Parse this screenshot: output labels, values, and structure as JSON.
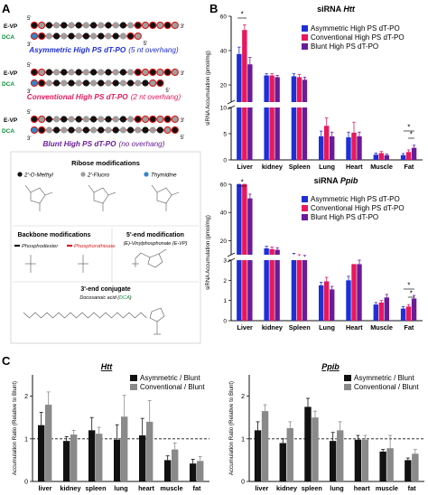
{
  "panels": {
    "a": "A",
    "b": "B",
    "c": "C"
  },
  "panel_a": {
    "molecules": [
      {
        "evp": "E-VP",
        "dca": "DCA",
        "end5": "5'",
        "end3": "3'",
        "label": "Asymmetric High PS dT-PO",
        "note": "(5 nt overhang)",
        "color": "#1f2fd6",
        "overhang": 5
      },
      {
        "evp": "E-VP",
        "dca": "DCA",
        "end5": "5'",
        "end3": "3'",
        "label": "Conventional High PS dT-PO",
        "note": "(2 nt overhang)",
        "color": "#e8185c",
        "overhang": 2
      },
      {
        "evp": "E-VP",
        "dca": "DCA",
        "end5": "5'",
        "end3": "3'",
        "label": "Blunt High PS dT-PO",
        "note": "(no overhang)",
        "color": "#6a1b9a",
        "overhang": 0
      }
    ],
    "ribose": {
      "title": "Ribose modifications",
      "items": [
        {
          "label": "2'-O-Methyl",
          "color": "#111111"
        },
        {
          "label": "2'-Fluoro",
          "color": "#9e9e9e"
        },
        {
          "label": "Thymidine",
          "color": "#2f86c8"
        }
      ]
    },
    "backbone": {
      "title": "Backbone modifications",
      "items": [
        {
          "label": "Phosphodiester",
          "color": "#111111"
        },
        {
          "label": "Phosphorothioate",
          "color": "#d81b1b"
        }
      ]
    },
    "end5": {
      "title": "5'-end modification",
      "subtitle": "(E)-Vinylphosphonate (E-VP)"
    },
    "end3": {
      "title": "3'-end conjugate",
      "subtitle_prefix": "Docosanoic acid (",
      "subtitle_dca": "DCA",
      "subtitle_suffix": ")"
    }
  },
  "chart_data": [
    {
      "type": "bar",
      "title_prefix": "siRNA ",
      "title_gene": "Htt",
      "ylabel": "siRNA Accumulation (pmol/mg)",
      "categories": [
        "Liver",
        "kidney",
        "Spleen",
        "Lung",
        "Heart",
        "Muscle",
        "Fat"
      ],
      "axis_break": true,
      "yticks_lower": [
        "0",
        "5",
        "10"
      ],
      "yticks_upper": [
        "20",
        "40",
        "60"
      ],
      "ylim_lower": [
        0,
        10
      ],
      "ylim_upper": [
        10,
        60
      ],
      "series": [
        {
          "name": "Asymmetric High PS dT-PO",
          "color": "#1f2fd6",
          "values": [
            38,
            25.5,
            25,
            4.5,
            4.3,
            1.0,
            0.9
          ]
        },
        {
          "name": "Conventional High PS dT-PO",
          "color": "#e8185c",
          "values": [
            52,
            25.5,
            24.5,
            6.5,
            5.2,
            1.3,
            1.5
          ]
        },
        {
          "name": "Blunt High PS dT-PO",
          "color": "#6a1b9a",
          "values": [
            32,
            24.5,
            23,
            4.5,
            4.5,
            0.9,
            2.3
          ]
        }
      ],
      "errors": [
        [
          4,
          1,
          1.5,
          1,
          1,
          0.3,
          0.3
        ],
        [
          3,
          1,
          1.5,
          1.5,
          2,
          0.3,
          0.4
        ],
        [
          4,
          1,
          1.5,
          0.8,
          0.8,
          0.2,
          0.5
        ]
      ],
      "significance": [
        {
          "category": "Liver",
          "mark": "*"
        },
        {
          "category": "Fat",
          "mark": "*"
        },
        {
          "category": "Fat",
          "mark": "*"
        }
      ]
    },
    {
      "type": "bar",
      "title_prefix": "siRNA ",
      "title_gene": "Ppib",
      "ylabel": "siRNA Accumulation (pmol/mg)",
      "categories": [
        "Liver",
        "kidney",
        "Spleen",
        "Lung",
        "Heart",
        "Muscle",
        "Fat"
      ],
      "axis_break": true,
      "yticks_lower": [
        "0",
        "1",
        "2",
        "3"
      ],
      "yticks_upper": [
        "20",
        "40",
        "60"
      ],
      "ylim_lower": [
        0,
        3
      ],
      "ylim_upper": [
        10,
        60
      ],
      "series": [
        {
          "name": "Asymmetric High PS dT-PO",
          "color": "#1f2fd6",
          "values": [
            60,
            14.5,
            10,
            1.75,
            2.0,
            0.8,
            0.6
          ]
        },
        {
          "name": "Conventional High PS dT-PO",
          "color": "#e8185c",
          "values": [
            62,
            14.0,
            9,
            1.95,
            2.8,
            0.9,
            0.7
          ]
        },
        {
          "name": "Blunt High PS dT-PO",
          "color": "#6a1b9a",
          "values": [
            50,
            13.5,
            8.5,
            1.55,
            2.8,
            1.15,
            1.1
          ]
        }
      ],
      "errors": [
        [
          3,
          1.5,
          1,
          0.15,
          0.2,
          0.1,
          0.1
        ],
        [
          3,
          1.5,
          1,
          0.2,
          0.3,
          0.1,
          0.1
        ],
        [
          3,
          1.5,
          1,
          0.15,
          0.2,
          0.15,
          0.15
        ]
      ],
      "significance": [
        {
          "category": "Liver",
          "mark": "*"
        },
        {
          "category": "Fat",
          "mark": "*"
        },
        {
          "category": "Fat",
          "mark": "*"
        }
      ]
    },
    {
      "type": "bar",
      "title": "Htt",
      "ylabel": "Accumulation Ratio (Relative to Blunt)",
      "categories": [
        "liver",
        "kidney",
        "spleen",
        "lung",
        "heart",
        "muscle",
        "fat"
      ],
      "yticks": [
        "0",
        "1",
        "2"
      ],
      "ylim": [
        0,
        2.5
      ],
      "reference_line": 1,
      "series": [
        {
          "name": "Asymmetric / Blunt",
          "color": "#111111",
          "values": [
            1.32,
            0.95,
            1.2,
            0.98,
            1.08,
            0.5,
            0.42
          ]
        },
        {
          "name": "Conventional / Blunt",
          "color": "#8a8a8a",
          "values": [
            1.8,
            1.1,
            1.12,
            1.52,
            1.4,
            0.75,
            0.48
          ]
        }
      ],
      "errors": [
        [
          0.3,
          0.1,
          0.3,
          0.35,
          0.4,
          0.1,
          0.1
        ],
        [
          0.3,
          0.1,
          0.15,
          0.5,
          0.5,
          0.15,
          0.1
        ]
      ]
    },
    {
      "type": "bar",
      "title": "Ppib",
      "ylabel": "Accumulation Ratio (Relative to Blunt)",
      "categories": [
        "liver",
        "kidney",
        "spleen",
        "lung",
        "heart",
        "muscle",
        "fat"
      ],
      "yticks": [
        "0",
        "1",
        "2"
      ],
      "ylim": [
        0,
        2.5
      ],
      "reference_line": 1,
      "series": [
        {
          "name": "Asymmetric / Blunt",
          "color": "#111111",
          "values": [
            1.2,
            0.9,
            1.75,
            0.95,
            0.98,
            0.7,
            0.5
          ]
        },
        {
          "name": "Conventional / Blunt",
          "color": "#8a8a8a",
          "values": [
            1.65,
            1.25,
            1.5,
            1.2,
            0.98,
            0.78,
            0.65
          ]
        }
      ],
      "errors": [
        [
          0.2,
          0.1,
          0.2,
          0.2,
          0.1,
          0.05,
          0.05
        ],
        [
          0.15,
          0.15,
          0.15,
          0.2,
          0.1,
          0.3,
          0.1
        ]
      ]
    }
  ]
}
